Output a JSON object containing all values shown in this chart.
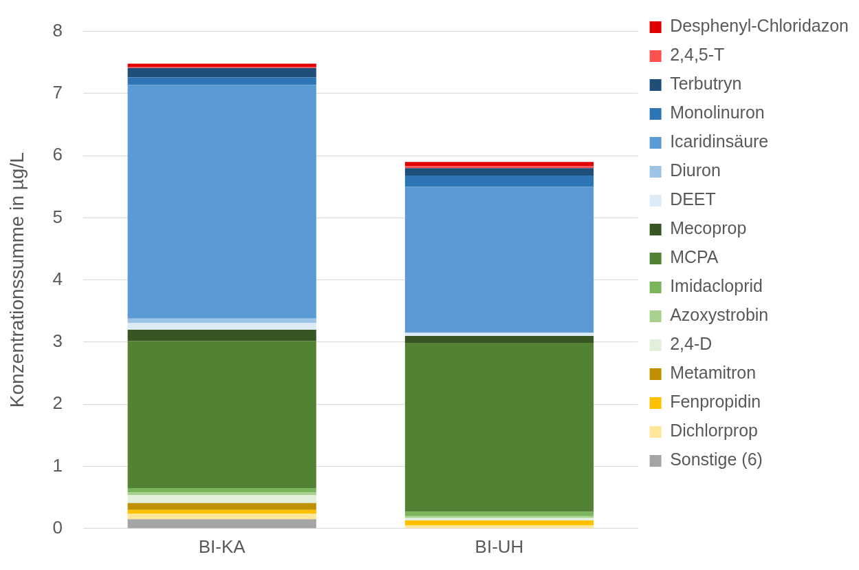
{
  "chart_data": {
    "type": "bar",
    "stacked": true,
    "ylabel": "Konzentrationssumme in µg/L",
    "categories": [
      "BI-KA",
      "BI-UH"
    ],
    "series": [
      {
        "name": "Sonstige (6)",
        "color": "#a5a5a5",
        "values": [
          0.15,
          0
        ]
      },
      {
        "name": "Dichlorprop",
        "color": "#ffe699",
        "values": [
          0.09,
          0.05
        ]
      },
      {
        "name": "Fenpropidin",
        "color": "#ffc000",
        "values": [
          0.06,
          0.08
        ]
      },
      {
        "name": "Metamitron",
        "color": "#bf9000",
        "values": [
          0.11,
          0
        ]
      },
      {
        "name": "2,4-D",
        "color": "#e2efda",
        "values": [
          0.13,
          0.04
        ]
      },
      {
        "name": "Azoxystrobin",
        "color": "#a9d18e",
        "values": [
          0.04,
          0.03
        ]
      },
      {
        "name": "Imidacloprid",
        "color": "#7ab55c",
        "values": [
          0.07,
          0.07
        ]
      },
      {
        "name": "MCPA",
        "color": "#548235",
        "values": [
          2.37,
          2.72
        ]
      },
      {
        "name": "Mecoprop",
        "color": "#375623",
        "values": [
          0.18,
          0.11
        ]
      },
      {
        "name": "DEET",
        "color": "#ddebf7",
        "values": [
          0.11,
          0.05
        ]
      },
      {
        "name": "Diuron",
        "color": "#9dc3e6",
        "values": [
          0.07,
          0
        ]
      },
      {
        "name": "Icaridinsäure",
        "color": "#5b9bd5",
        "values": [
          3.76,
          2.35
        ]
      },
      {
        "name": "Monolinuron",
        "color": "#2e75b6",
        "values": [
          0.12,
          0.18
        ]
      },
      {
        "name": "Terbutryn",
        "color": "#1f4e79",
        "values": [
          0.15,
          0.12
        ]
      },
      {
        "name": "2,4,5-T",
        "color": "#ff5050",
        "values": [
          0.02,
          0.03
        ]
      },
      {
        "name": "Desphenyl-Chloridazon",
        "color": "#e00000",
        "values": [
          0.05,
          0.07
        ]
      }
    ],
    "ylim": [
      0,
      8
    ],
    "yticks": [
      0,
      1,
      2,
      3,
      4,
      5,
      6,
      7,
      8
    ],
    "grid": "y",
    "legend": "right"
  }
}
